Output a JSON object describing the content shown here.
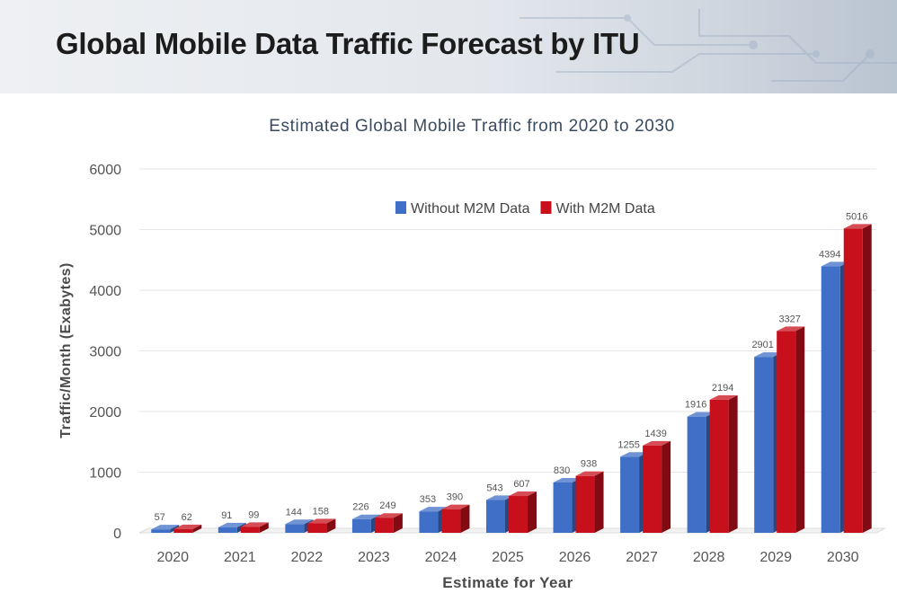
{
  "slide": {
    "title": "Global Mobile Data Traffic Forecast by ITU"
  },
  "chart_data": {
    "type": "bar",
    "title": "Estimated Global Mobile Traffic from 2020 to 2030",
    "xlabel": "Estimate for Year",
    "ylabel": "Traffic/Month (Exabytes)",
    "ylim": [
      0,
      6000
    ],
    "yticks": [
      "0",
      "1000",
      "2000",
      "3000",
      "4000",
      "5000",
      "6000"
    ],
    "grid": true,
    "legend_position": "top-right",
    "categories": [
      "2020",
      "2021",
      "2022",
      "2023",
      "2024",
      "2025",
      "2026",
      "2027",
      "2028",
      "2029",
      "2030"
    ],
    "series": [
      {
        "name": "Without M2M Data",
        "color": "#3f6fc6",
        "values": [
          57,
          91,
          144,
          226,
          353,
          543,
          830,
          1255,
          1916,
          2901,
          4394
        ],
        "labels": [
          "57",
          "91",
          "144",
          "226",
          "353",
          "543",
          "830",
          "1255",
          "1916",
          "2901",
          "4394"
        ]
      },
      {
        "name": "With M2M Data",
        "color": "#c8101c",
        "values": [
          62,
          99,
          158,
          249,
          390,
          607,
          938,
          1439,
          2194,
          3327,
          5016
        ],
        "labels": [
          "62",
          "99",
          "158",
          "249",
          "390",
          "607",
          "938",
          "1439",
          "2194",
          "3327",
          "5016"
        ]
      }
    ]
  }
}
